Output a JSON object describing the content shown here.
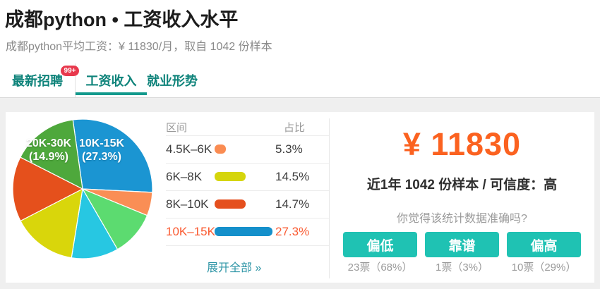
{
  "header": {
    "title": "成都python • 工资收入水平",
    "subtitle": "成都python平均工资：¥ 11830/月，取自 1042 份样本"
  },
  "tabs": {
    "items": [
      {
        "label": "最新招聘",
        "badge": "99+",
        "active": false
      },
      {
        "label": "工资收入",
        "badge": "",
        "active": true
      },
      {
        "label": "就业形势",
        "badge": "",
        "active": false
      }
    ]
  },
  "chart_data": {
    "type": "pie",
    "start_angle_deg": -8,
    "legend_position": "none",
    "slices": [
      {
        "label": "10K-15K",
        "pct": 27.3,
        "color": "#1B95D2",
        "labeled_on_pie": true
      },
      {
        "label": "4.5K-6K",
        "pct": 5.3,
        "color": "#FA8E55",
        "labeled_on_pie": false
      },
      {
        "label": "",
        "pct": 10.2,
        "color": "#5CDB70",
        "labeled_on_pie": false,
        "estimated": true
      },
      {
        "label": "",
        "pct": 10.6,
        "color": "#27C7E2",
        "labeled_on_pie": false,
        "estimated": true
      },
      {
        "label": "6K-8K",
        "pct": 14.5,
        "color": "#D9D60B",
        "labeled_on_pie": false
      },
      {
        "label": "8K-10K",
        "pct": 14.7,
        "color": "#E5501C",
        "labeled_on_pie": false
      },
      {
        "label": "20K-30K",
        "pct": 14.9,
        "color": "#4EA83C",
        "labeled_on_pie": true
      }
    ],
    "pie_labels": [
      {
        "line1": "20K-30K",
        "line2": "(14.9%)"
      },
      {
        "line1": "10K-15K",
        "line2": "(27.3%)"
      }
    ]
  },
  "table": {
    "headers": [
      "区间",
      "占比"
    ],
    "rows": [
      {
        "range": "4.5K–6K",
        "pct": 5.3,
        "pct_text": "5.3%",
        "color": "#FA8C52",
        "highlight": false
      },
      {
        "range": "6K–8K",
        "pct": 14.5,
        "pct_text": "14.5%",
        "color": "#D5D50C",
        "highlight": false
      },
      {
        "range": "8K–10K",
        "pct": 14.7,
        "pct_text": "14.7%",
        "color": "#E5501E",
        "highlight": false
      },
      {
        "range": "10K–15K",
        "pct": 27.3,
        "pct_text": "27.3%",
        "color": "#1590CB",
        "highlight": true
      }
    ],
    "expand_link": "展开全部 »"
  },
  "summary": {
    "salary": "¥ 11830",
    "sample_line": "近1年 1042 份样本 / 可信度：高",
    "question": "你觉得该统计数据准确吗?",
    "votes": [
      {
        "button": "偏低",
        "count": "23票（68%）"
      },
      {
        "button": "靠谱",
        "count": "1票（3%）"
      },
      {
        "button": "偏高",
        "count": "10票（29%）"
      }
    ]
  },
  "colors": {
    "tab_teal": "#0E837A",
    "tab_underline": "#12998C",
    "badge_red": "#E8394D",
    "button_teal": "#1FC2B3",
    "accent_orange": "#FB6220",
    "highlight_orange": "#FA5B32",
    "link_teal": "#2E95A6"
  }
}
